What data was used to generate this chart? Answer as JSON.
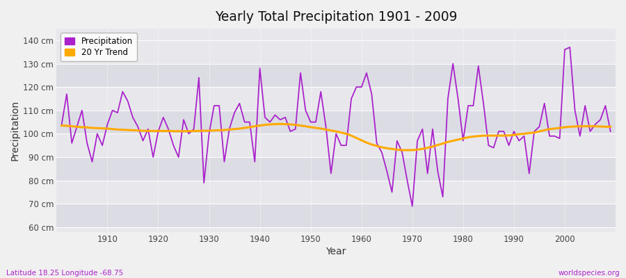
{
  "title": "Yearly Total Precipitation 1901 - 2009",
  "xlabel": "Year",
  "ylabel": "Precipitation",
  "subtitle_left": "Latitude 18.25 Longitude -68.75",
  "subtitle_right": "worldspecies.org",
  "ylim": [
    58,
    145
  ],
  "yticks": [
    60,
    70,
    80,
    90,
    100,
    110,
    120,
    130,
    140
  ],
  "ytick_labels": [
    "60 cm",
    "70 cm",
    "80 cm",
    "90 cm",
    "100 cm",
    "110 cm",
    "120 cm",
    "130 cm",
    "140 cm"
  ],
  "fig_bg_color": "#f0f0f0",
  "plot_bg_color": "#e8e8ec",
  "band_color_dark": "#dcdce4",
  "band_color_light": "#e8e8ec",
  "line_color_precip": "#aa22cc",
  "line_color_trend": "#ffaa00",
  "years": [
    1901,
    1902,
    1903,
    1904,
    1905,
    1906,
    1907,
    1908,
    1909,
    1910,
    1911,
    1912,
    1913,
    1914,
    1915,
    1916,
    1917,
    1918,
    1919,
    1920,
    1921,
    1922,
    1923,
    1924,
    1925,
    1926,
    1927,
    1928,
    1929,
    1930,
    1931,
    1932,
    1933,
    1934,
    1935,
    1936,
    1937,
    1938,
    1939,
    1940,
    1941,
    1942,
    1943,
    1944,
    1945,
    1946,
    1947,
    1948,
    1949,
    1950,
    1951,
    1952,
    1953,
    1954,
    1955,
    1956,
    1957,
    1958,
    1959,
    1960,
    1961,
    1962,
    1963,
    1964,
    1965,
    1966,
    1967,
    1968,
    1969,
    1970,
    1971,
    1972,
    1973,
    1974,
    1975,
    1976,
    1977,
    1978,
    1979,
    1980,
    1981,
    1982,
    1983,
    1984,
    1985,
    1986,
    1987,
    1988,
    1989,
    1990,
    1991,
    1992,
    1993,
    1994,
    1995,
    1996,
    1997,
    1998,
    1999,
    2000,
    2001,
    2002,
    2003,
    2004,
    2005,
    2006,
    2007,
    2008,
    2009
  ],
  "precip": [
    104,
    117,
    96,
    103,
    110,
    96,
    88,
    100,
    95,
    104,
    110,
    109,
    118,
    114,
    107,
    103,
    97,
    102,
    90,
    101,
    107,
    102,
    95,
    90,
    106,
    100,
    102,
    124,
    79,
    100,
    112,
    112,
    88,
    102,
    109,
    113,
    105,
    105,
    88,
    128,
    107,
    105,
    108,
    106,
    107,
    101,
    102,
    126,
    110,
    105,
    105,
    118,
    103,
    83,
    100,
    95,
    95,
    115,
    120,
    120,
    126,
    117,
    96,
    92,
    84,
    75,
    97,
    92,
    80,
    69,
    97,
    102,
    83,
    102,
    84,
    73,
    115,
    130,
    115,
    97,
    112,
    112,
    129,
    113,
    95,
    94,
    101,
    101,
    95,
    101,
    97,
    99,
    83,
    101,
    103,
    113,
    99,
    99,
    98,
    136,
    137,
    110,
    99,
    112,
    101,
    104,
    106,
    112,
    101
  ],
  "trend": [
    103.5,
    103.4,
    103.2,
    103.0,
    102.8,
    102.7,
    102.5,
    102.4,
    102.3,
    102.2,
    102.0,
    101.8,
    101.7,
    101.6,
    101.5,
    101.4,
    101.3,
    101.2,
    101.2,
    101.2,
    101.2,
    101.2,
    101.1,
    101.1,
    101.1,
    101.1,
    101.2,
    101.2,
    101.3,
    101.3,
    101.4,
    101.5,
    101.6,
    101.8,
    102.0,
    102.2,
    102.5,
    102.8,
    103.2,
    103.5,
    103.8,
    104.0,
    104.1,
    104.2,
    104.1,
    104.0,
    103.8,
    103.5,
    103.2,
    102.8,
    102.5,
    102.2,
    101.8,
    101.4,
    101.0,
    100.5,
    100.0,
    99.2,
    98.2,
    97.2,
    96.2,
    95.4,
    94.8,
    94.2,
    93.8,
    93.5,
    93.2,
    93.0,
    93.0,
    93.0,
    93.2,
    93.5,
    94.0,
    94.5,
    95.2,
    95.8,
    96.5,
    97.0,
    97.5,
    98.0,
    98.5,
    98.8,
    99.0,
    99.2,
    99.2,
    99.2,
    99.2,
    99.2,
    99.3,
    99.5,
    99.8,
    100.0,
    100.3,
    100.5,
    101.0,
    101.5,
    102.0,
    102.2,
    102.5,
    102.8,
    103.0,
    103.1,
    103.2,
    103.2,
    103.2,
    103.2,
    103.1,
    103.0,
    103.0
  ]
}
